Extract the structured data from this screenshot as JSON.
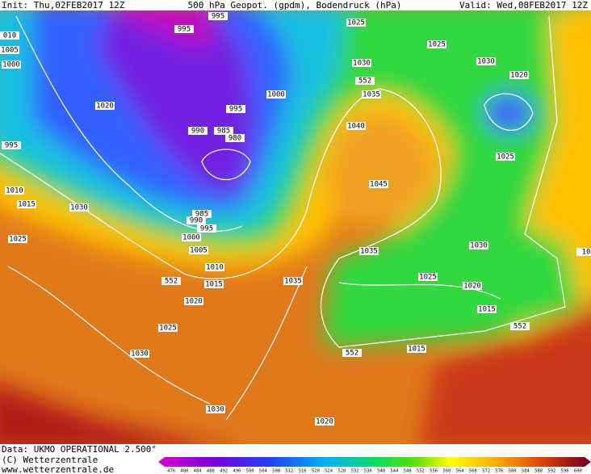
{
  "header": {
    "init": "Init: Thu,02FEB2017 12Z",
    "title": "500 hPa Geopot. (gpdm), Bodendruck (hPa)",
    "valid": "Valid: Wed,08FEB2017 12Z"
  },
  "isobar_labels": [
    "995",
    "995",
    "1025",
    "1025",
    "1030",
    "010",
    "1005",
    "1000",
    "1030",
    "552",
    "1035",
    "1020",
    "1000",
    "1020",
    "995",
    "990",
    "985",
    "980",
    "1040",
    "995",
    "1025",
    "1045",
    "1010",
    "1015",
    "1030",
    "985",
    "990",
    "995",
    "1000",
    "1025",
    "1005",
    "1030",
    "1035",
    "1010",
    "552",
    "1015",
    "1035",
    "1025",
    "1020",
    "1020",
    "1015",
    "552",
    "1025",
    "1030",
    "552",
    "1015",
    "1030",
    "1020",
    "10"
  ],
  "footer": {
    "data": "Data: UKMO OPERATIONAL 2.500°",
    "copyright": "(C) Wetterzentrale",
    "url": "www.wetterzentrale.de"
  },
  "colorbar": [
    476,
    480,
    484,
    488,
    492,
    496,
    500,
    504,
    508,
    512,
    516,
    520,
    524,
    528,
    532,
    536,
    540,
    544,
    548,
    552,
    556,
    560,
    564,
    568,
    572,
    576,
    580,
    584,
    588,
    592,
    596,
    600
  ]
}
